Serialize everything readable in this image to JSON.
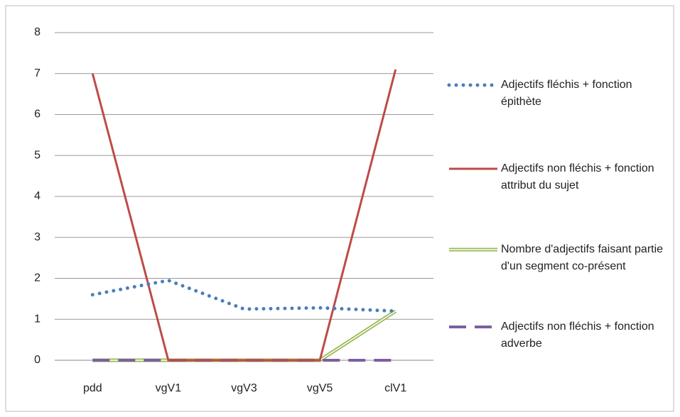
{
  "chart_data": {
    "type": "line",
    "categories": [
      "pdd",
      "vgV1",
      "vgV3",
      "vgV5",
      "clV1"
    ],
    "series": [
      {
        "name": "Adjectifs fléchis + fonction épithète",
        "color": "#4a7ebb",
        "style": "dotted",
        "values": [
          1.6,
          1.95,
          1.25,
          1.28,
          1.2
        ]
      },
      {
        "name": "Adjectifs non fléchis + fonction attribut du sujet",
        "color": "#be4b48",
        "style": "solid",
        "values": [
          7,
          0,
          0,
          0,
          7.1
        ]
      },
      {
        "name": "Nombre d'adjectifs faisant partie d'un segment co-présent",
        "color": "#98b954",
        "style": "double",
        "values": [
          0,
          0,
          0,
          0,
          1.2
        ]
      },
      {
        "name": "Adjectifs non fléchis + fonction adverbe",
        "color": "#7d5fa0",
        "style": "dashed",
        "values": [
          0,
          0,
          0,
          0,
          0
        ]
      }
    ],
    "ylim": [
      0,
      8
    ],
    "yticks": [
      0,
      1,
      2,
      3,
      4,
      5,
      6,
      7,
      8
    ],
    "grid": true,
    "legend": "right"
  }
}
